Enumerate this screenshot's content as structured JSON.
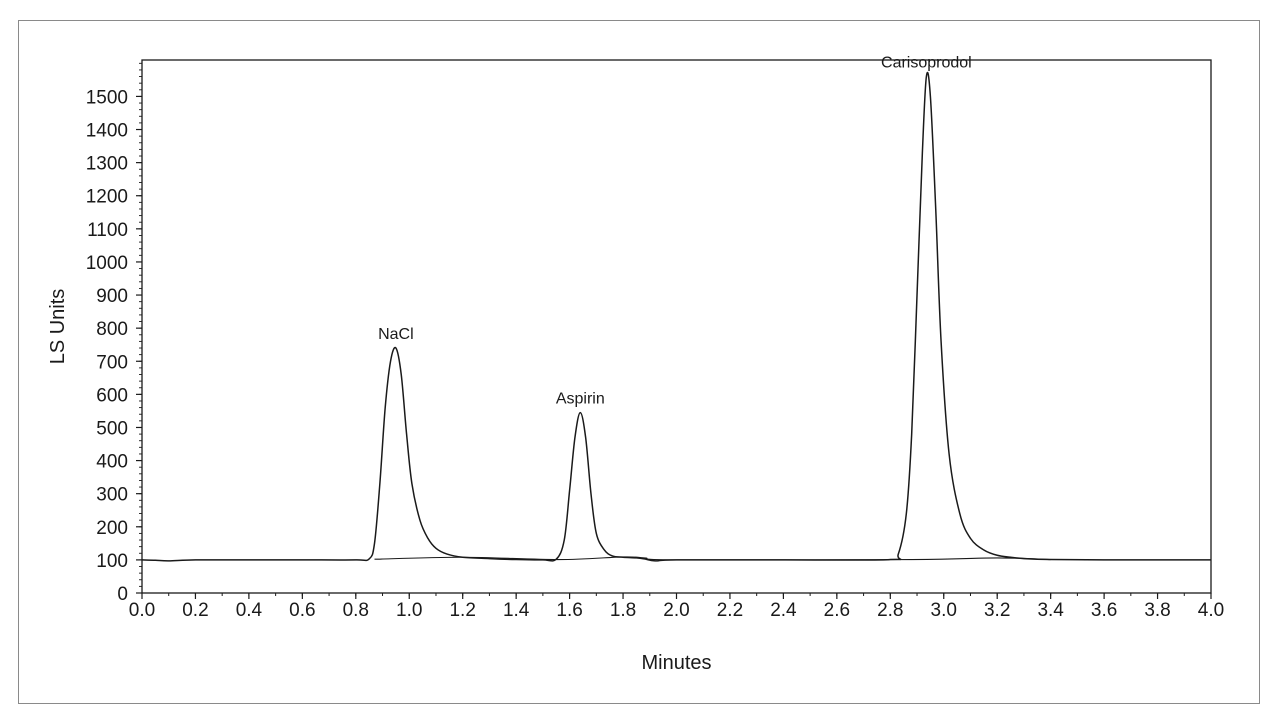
{
  "chart_data": {
    "type": "line",
    "title": "",
    "xlabel": "Minutes",
    "ylabel": "LS Units",
    "xlim": [
      0.0,
      4.0
    ],
    "ylim": [
      0,
      1610
    ],
    "x_ticks": [
      0.0,
      0.2,
      0.4,
      0.6,
      0.8,
      1.0,
      1.2,
      1.4,
      1.6,
      1.8,
      2.0,
      2.2,
      2.4,
      2.6,
      2.8,
      3.0,
      3.2,
      3.4,
      3.6,
      3.8,
      4.0
    ],
    "x_tick_labels": [
      "0.0",
      "0.2",
      "0.4",
      "0.6",
      "0.8",
      "1.0",
      "1.2",
      "1.4",
      "1.6",
      "1.8",
      "2.0",
      "2.2",
      "2.4",
      "2.6",
      "2.8",
      "3.0",
      "3.2",
      "3.4",
      "3.6",
      "3.8",
      "4.0"
    ],
    "y_ticks": [
      0,
      100,
      200,
      300,
      400,
      500,
      600,
      700,
      800,
      900,
      1000,
      1100,
      1200,
      1300,
      1400,
      1500
    ],
    "y_tick_labels": [
      "0",
      "100",
      "200",
      "300",
      "400",
      "500",
      "600",
      "700",
      "800",
      "900",
      "1000",
      "1100",
      "1200",
      "1300",
      "1400",
      "1500"
    ],
    "grid": false,
    "series": [
      {
        "color": "#1a1a1a",
        "x": [
          0.0,
          0.05,
          0.1,
          0.2,
          0.4,
          0.6,
          0.8,
          0.85,
          0.87,
          0.89,
          0.91,
          0.93,
          0.95,
          0.97,
          0.99,
          1.01,
          1.04,
          1.07,
          1.1,
          1.14,
          1.2,
          1.3,
          1.4,
          1.5,
          1.55,
          1.58,
          1.6,
          1.62,
          1.64,
          1.66,
          1.68,
          1.7,
          1.73,
          1.76,
          1.8,
          1.85,
          1.88,
          1.92,
          2.0,
          2.4,
          2.8,
          2.83,
          2.86,
          2.88,
          2.9,
          2.92,
          2.935,
          2.95,
          2.97,
          2.99,
          3.02,
          3.06,
          3.1,
          3.15,
          3.2,
          3.25,
          3.3,
          3.4,
          3.6,
          4.0
        ],
        "y": [
          100,
          99,
          97,
          100,
          100,
          100,
          100,
          103,
          150,
          330,
          560,
          700,
          740,
          660,
          480,
          330,
          220,
          165,
          135,
          118,
          108,
          104,
          101,
          100,
          102,
          160,
          310,
          470,
          545,
          470,
          300,
          180,
          130,
          112,
          108,
          106,
          103,
          97,
          100,
          100,
          101,
          118,
          240,
          480,
          900,
          1330,
          1560,
          1500,
          1160,
          760,
          420,
          240,
          165,
          130,
          114,
          108,
          104,
          101,
          100,
          100
        ]
      },
      {
        "color": "#1a1a1a",
        "x": [
          0.87,
          1.2,
          1.56,
          1.8,
          1.88,
          2.0,
          2.88,
          3.2,
          3.4
        ],
        "y": [
          102,
          108,
          101,
          109,
          106,
          100,
          101,
          106,
          101
        ]
      }
    ],
    "annotations": [
      {
        "text": "NaCl",
        "x": 0.95,
        "y": 740
      },
      {
        "text": "Aspirin",
        "x": 1.64,
        "y": 545
      },
      {
        "text": "Carisoprodol",
        "x": 2.935,
        "y": 1560
      }
    ]
  }
}
